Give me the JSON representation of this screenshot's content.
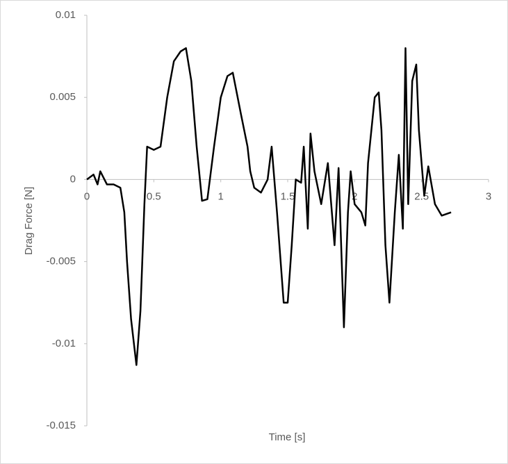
{
  "chart_data": {
    "type": "line",
    "x_label": "Time [s]",
    "y_label": "Drag Force [N]",
    "xlim": [
      0,
      3
    ],
    "xticks": [
      0,
      0.5,
      1,
      1.5,
      2,
      2.5,
      3
    ],
    "ylim": [
      -0.015,
      0.01
    ],
    "yticks": [
      0.01,
      0.005,
      0,
      -0.005,
      -0.01,
      -0.015
    ],
    "grid": false,
    "series": [
      {
        "color": "#000000",
        "x": [
          0,
          0.05,
          0.08,
          0.1,
          0.15,
          0.2,
          0.25,
          0.28,
          0.3,
          0.33,
          0.37,
          0.4,
          0.43,
          0.45,
          0.5,
          0.55,
          0.6,
          0.65,
          0.7,
          0.74,
          0.78,
          0.82,
          0.86,
          0.9,
          0.95,
          1.0,
          1.05,
          1.09,
          1.15,
          1.2,
          1.22,
          1.25,
          1.3,
          1.35,
          1.38,
          1.42,
          1.47,
          1.5,
          1.53,
          1.56,
          1.6,
          1.62,
          1.65,
          1.67,
          1.7,
          1.75,
          1.8,
          1.85,
          1.88,
          1.92,
          1.95,
          1.97,
          2.0,
          2.05,
          2.08,
          2.1,
          2.15,
          2.18,
          2.2,
          2.23,
          2.26,
          2.3,
          2.33,
          2.36,
          2.38,
          2.4,
          2.43,
          2.46,
          2.48,
          2.52,
          2.55,
          2.6,
          2.65,
          2.72
        ],
        "values": [
          0,
          0.0003,
          -0.0003,
          0.0005,
          -0.0003,
          -0.0003,
          -0.0005,
          -0.002,
          -0.005,
          -0.0085,
          -0.0113,
          -0.008,
          -0.0015,
          0.002,
          0.0018,
          0.002,
          0.005,
          0.0072,
          0.0078,
          0.008,
          0.006,
          0.002,
          -0.0013,
          -0.0012,
          0.002,
          0.005,
          0.0063,
          0.0065,
          0.004,
          0.002,
          0.0005,
          -0.0005,
          -0.0008,
          0,
          0.002,
          -0.002,
          -0.0075,
          -0.0075,
          -0.004,
          0,
          -0.0002,
          0.002,
          -0.003,
          0.0028,
          0.0005,
          -0.0015,
          0.001,
          -0.004,
          0.0007,
          -0.009,
          -0.002,
          0.0005,
          -0.0015,
          -0.002,
          -0.0028,
          0.001,
          0.005,
          0.0053,
          0.003,
          -0.004,
          -0.0075,
          -0.002,
          0.0015,
          -0.003,
          0.008,
          -0.0015,
          0.006,
          0.007,
          0.003,
          -0.001,
          0.0008,
          -0.0015,
          -0.0022,
          -0.002
        ]
      }
    ]
  }
}
